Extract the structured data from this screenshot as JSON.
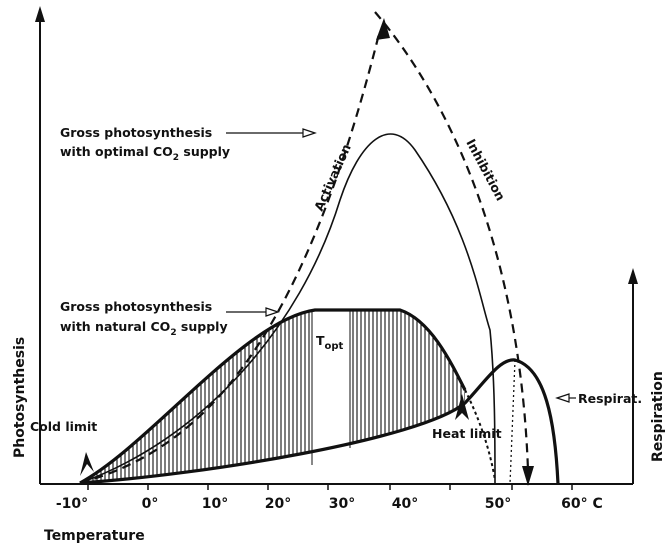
{
  "axes": {
    "x_label": "Temperature",
    "y_left_label": "Photosynthesis",
    "y_right_label": "Respiration",
    "x_ticks": [
      "-10°",
      "0°",
      "10°",
      "20°",
      "30°",
      "40°",
      "50°",
      "60° C"
    ]
  },
  "labels": {
    "optimal_line1": "Gross photosynthesis",
    "optimal_line2": "with optimal CO",
    "optimal_sub": "2",
    "optimal_tail": " supply",
    "natural_line1": "Gross photosynthesis",
    "natural_line2": "with natural CO",
    "natural_sub": "2",
    "natural_tail": " supply",
    "activation": "Activation",
    "inhibition": "Inhibition",
    "t_opt_main": "T",
    "t_opt_sub": "opt",
    "cold_limit": "Cold limit",
    "heat_limit": "Heat limit",
    "respiration": "Respirat."
  },
  "colors": {
    "ink": "#111111",
    "background": "#ffffff"
  }
}
